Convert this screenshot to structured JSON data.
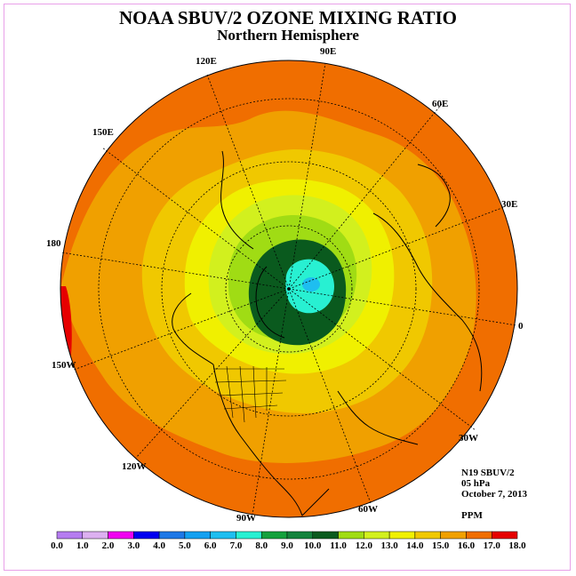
{
  "title": "NOAA SBUV/2 OZONE MIXING RATIO",
  "subtitle": "Northern Hemisphere",
  "info": {
    "satellite": "N19 SBUV/2",
    "level": "05 hPa",
    "date": "October 7, 2013",
    "units": "PPM"
  },
  "longitude_labels": [
    "90E",
    "60E",
    "30E",
    "0",
    "30W",
    "60W",
    "90W",
    "120W",
    "150W",
    "180",
    "150E",
    "120E"
  ],
  "colorbar": {
    "labels": [
      "0.0",
      "1.0",
      "2.0",
      "3.0",
      "4.0",
      "5.0",
      "6.0",
      "7.0",
      "8.0",
      "9.0",
      "10.0",
      "11.0",
      "12.0",
      "13.0",
      "14.0",
      "15.0",
      "16.0",
      "17.0",
      "18.0"
    ],
    "colors": [
      "#b57cf0",
      "#dcb0f0",
      "#f000f0",
      "#0000f0",
      "#1e78e6",
      "#14a0f0",
      "#1ebef0",
      "#28f0d2",
      "#14a03c",
      "#14823c",
      "#0a5a1e",
      "#a0dc14",
      "#d2f01e",
      "#f0f000",
      "#f0c800",
      "#f0a000",
      "#f06e00",
      "#e60000",
      "#8c5a3c"
    ]
  }
}
